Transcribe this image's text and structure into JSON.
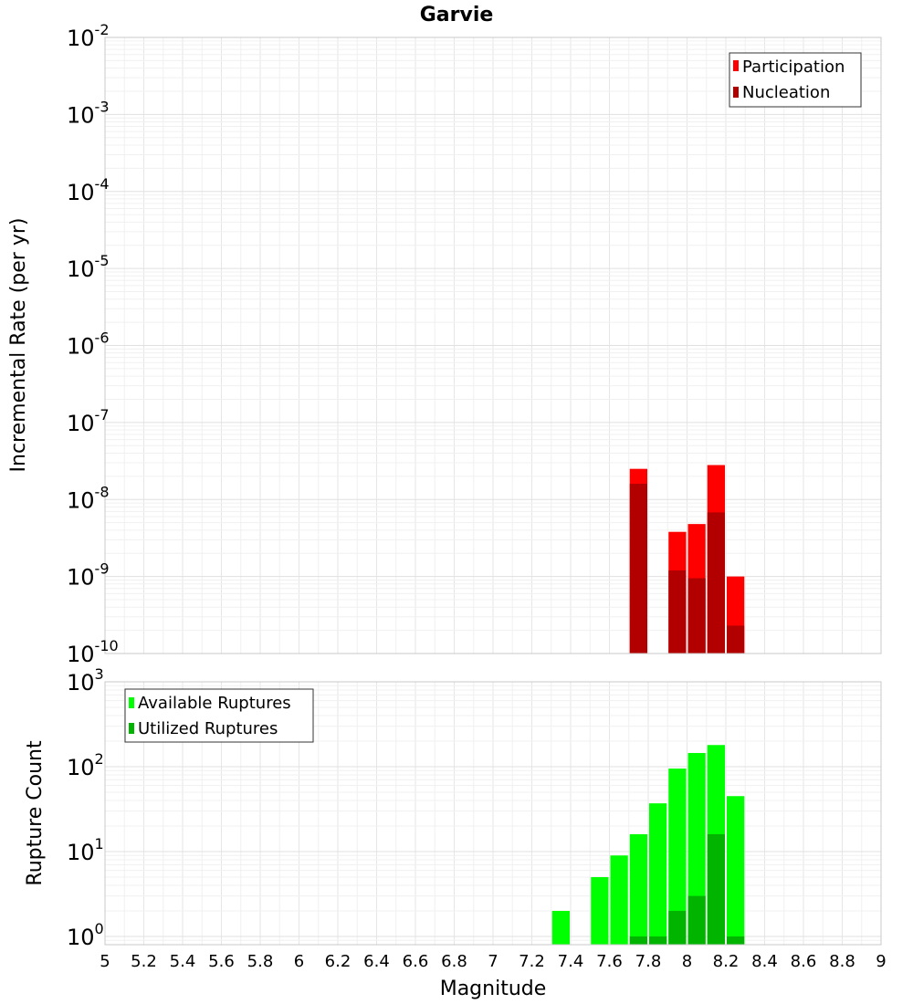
{
  "title": "Garvie",
  "chart_data": [
    {
      "type": "bar",
      "ylabel": "Incremental Rate (per yr)",
      "yscale": "log",
      "ylim": [
        1e-10,
        0.01
      ],
      "xlim": [
        5,
        9
      ],
      "yticks": [
        {
          "base": "10",
          "exp": "-2",
          "value": 0.01
        },
        {
          "base": "10",
          "exp": "-3",
          "value": 0.001
        },
        {
          "base": "10",
          "exp": "-4",
          "value": 0.0001
        },
        {
          "base": "10",
          "exp": "-5",
          "value": 1e-05
        },
        {
          "base": "10",
          "exp": "-6",
          "value": 1e-06
        },
        {
          "base": "10",
          "exp": "-7",
          "value": 1e-07
        },
        {
          "base": "10",
          "exp": "-8",
          "value": 1e-08
        },
        {
          "base": "10",
          "exp": "-9",
          "value": 1e-09
        },
        {
          "base": "10",
          "exp": "-10",
          "value": 1e-10
        }
      ],
      "legend_position": "top-right",
      "series": [
        {
          "name": "Participation",
          "color": "#ff0000",
          "points": [
            {
              "x": 7.75,
              "y": 2.5e-08
            },
            {
              "x": 7.95,
              "y": 3.8e-09
            },
            {
              "x": 8.05,
              "y": 4.8e-09
            },
            {
              "x": 8.15,
              "y": 2.8e-08
            },
            {
              "x": 8.25,
              "y": 1e-09
            }
          ]
        },
        {
          "name": "Nucleation",
          "color": "#b20000",
          "points": [
            {
              "x": 7.75,
              "y": 1.6e-08
            },
            {
              "x": 7.95,
              "y": 1.2e-09
            },
            {
              "x": 8.05,
              "y": 9.5e-10
            },
            {
              "x": 8.15,
              "y": 6.8e-09
            },
            {
              "x": 8.25,
              "y": 2.3e-10
            }
          ]
        }
      ]
    },
    {
      "type": "bar",
      "xlabel": "Magnitude",
      "ylabel": "Rupture Count",
      "yscale": "log",
      "ylim": [
        0.8,
        1000
      ],
      "xlim": [
        5,
        9
      ],
      "xticks": [
        "5",
        "5.2",
        "5.4",
        "5.6",
        "5.8",
        "6",
        "6.2",
        "6.4",
        "6.6",
        "6.8",
        "7",
        "7.2",
        "7.4",
        "7.6",
        "7.8",
        "8",
        "8.2",
        "8.4",
        "8.6",
        "8.8",
        "9"
      ],
      "yticks": [
        {
          "base": "10",
          "exp": "3",
          "value": 1000
        },
        {
          "base": "10",
          "exp": "2",
          "value": 100
        },
        {
          "base": "10",
          "exp": "1",
          "value": 10
        },
        {
          "base": "10",
          "exp": "0",
          "value": 1
        }
      ],
      "legend_position": "top-left",
      "series": [
        {
          "name": "Available Ruptures",
          "color": "#00ff00",
          "points": [
            {
              "x": 7.35,
              "y": 2
            },
            {
              "x": 7.55,
              "y": 5
            },
            {
              "x": 7.65,
              "y": 9
            },
            {
              "x": 7.75,
              "y": 16
            },
            {
              "x": 7.85,
              "y": 37
            },
            {
              "x": 7.95,
              "y": 95
            },
            {
              "x": 8.05,
              "y": 145
            },
            {
              "x": 8.15,
              "y": 180
            },
            {
              "x": 8.25,
              "y": 45
            }
          ]
        },
        {
          "name": "Utilized Ruptures",
          "color": "#00b400",
          "points": [
            {
              "x": 7.75,
              "y": 1
            },
            {
              "x": 7.85,
              "y": 1
            },
            {
              "x": 7.95,
              "y": 2
            },
            {
              "x": 8.05,
              "y": 3
            },
            {
              "x": 8.15,
              "y": 16
            },
            {
              "x": 8.25,
              "y": 1
            }
          ]
        }
      ]
    }
  ]
}
